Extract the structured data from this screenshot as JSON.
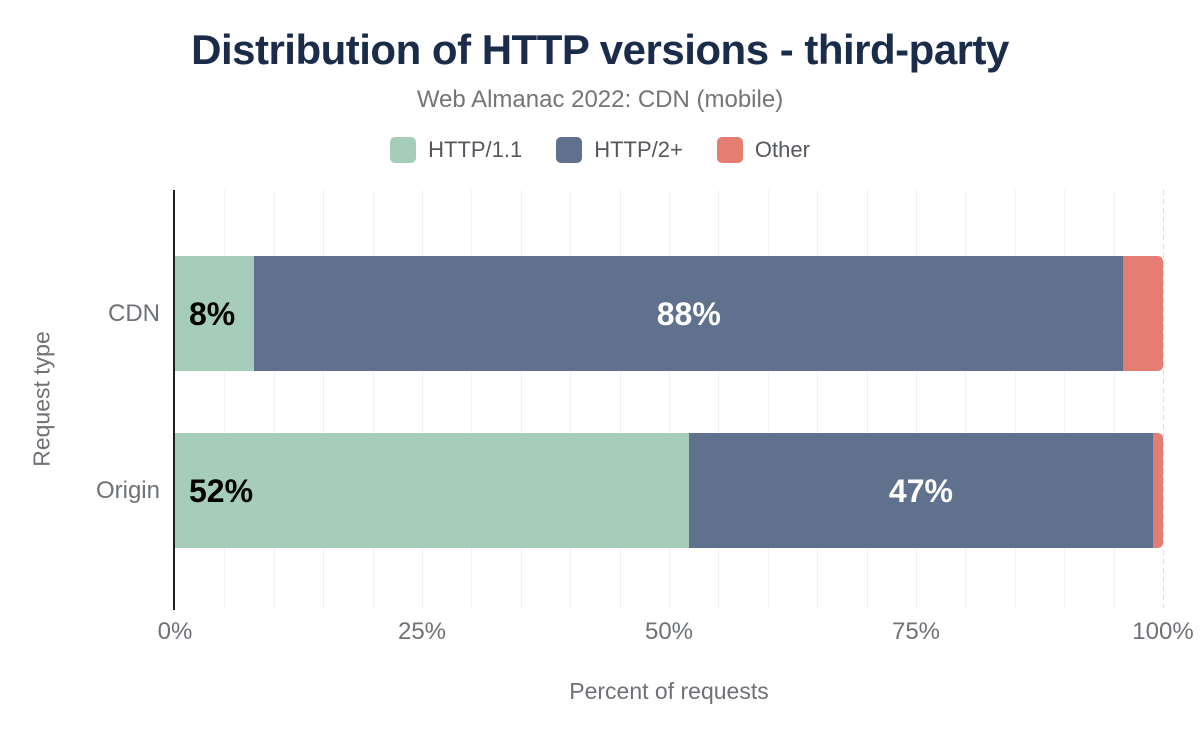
{
  "header": {
    "title": "Distribution of HTTP versions - third-party",
    "subtitle": "Web Almanac 2022: CDN (mobile)"
  },
  "chart_data": {
    "type": "bar",
    "orientation": "horizontal",
    "stacked": true,
    "title": "Distribution of HTTP versions - third-party",
    "subtitle": "Web Almanac 2022: CDN (mobile)",
    "categories": [
      "CDN",
      "Origin"
    ],
    "series": [
      {
        "name": "HTTP/1.1",
        "color": "#a6ccba",
        "values": [
          8,
          52
        ],
        "labels": [
          "8%",
          "52%"
        ],
        "label_color": "#000000",
        "label_align": "left"
      },
      {
        "name": "HTTP/2+",
        "color": "#5f718d",
        "values": [
          88,
          47
        ],
        "labels": [
          "88%",
          "47%"
        ],
        "label_color": "#ffffff",
        "label_align": "center"
      },
      {
        "name": "Other",
        "color": "#e57d72",
        "values": [
          4,
          1
        ],
        "labels": [
          null,
          null
        ],
        "label_color": "#ffffff",
        "label_align": "center"
      }
    ],
    "xlabel": "Percent of requests",
    "ylabel": "Request type",
    "xlim": [
      0,
      100
    ],
    "xticks": [
      "0%",
      "25%",
      "50%",
      "75%",
      "100%"
    ],
    "xtick_values": [
      0,
      25,
      50,
      75,
      100
    ],
    "grid": {
      "step": 5,
      "color": "#f1f1f1",
      "last_line_dashed": true
    },
    "legend_position": "top"
  },
  "colors": {
    "title": "#1b2b4a",
    "subtitle": "#757575",
    "axis_text": "#6e7276",
    "legend_text": "#54585c",
    "axis_line": "#1f1f1f",
    "background": "#ffffff"
  }
}
